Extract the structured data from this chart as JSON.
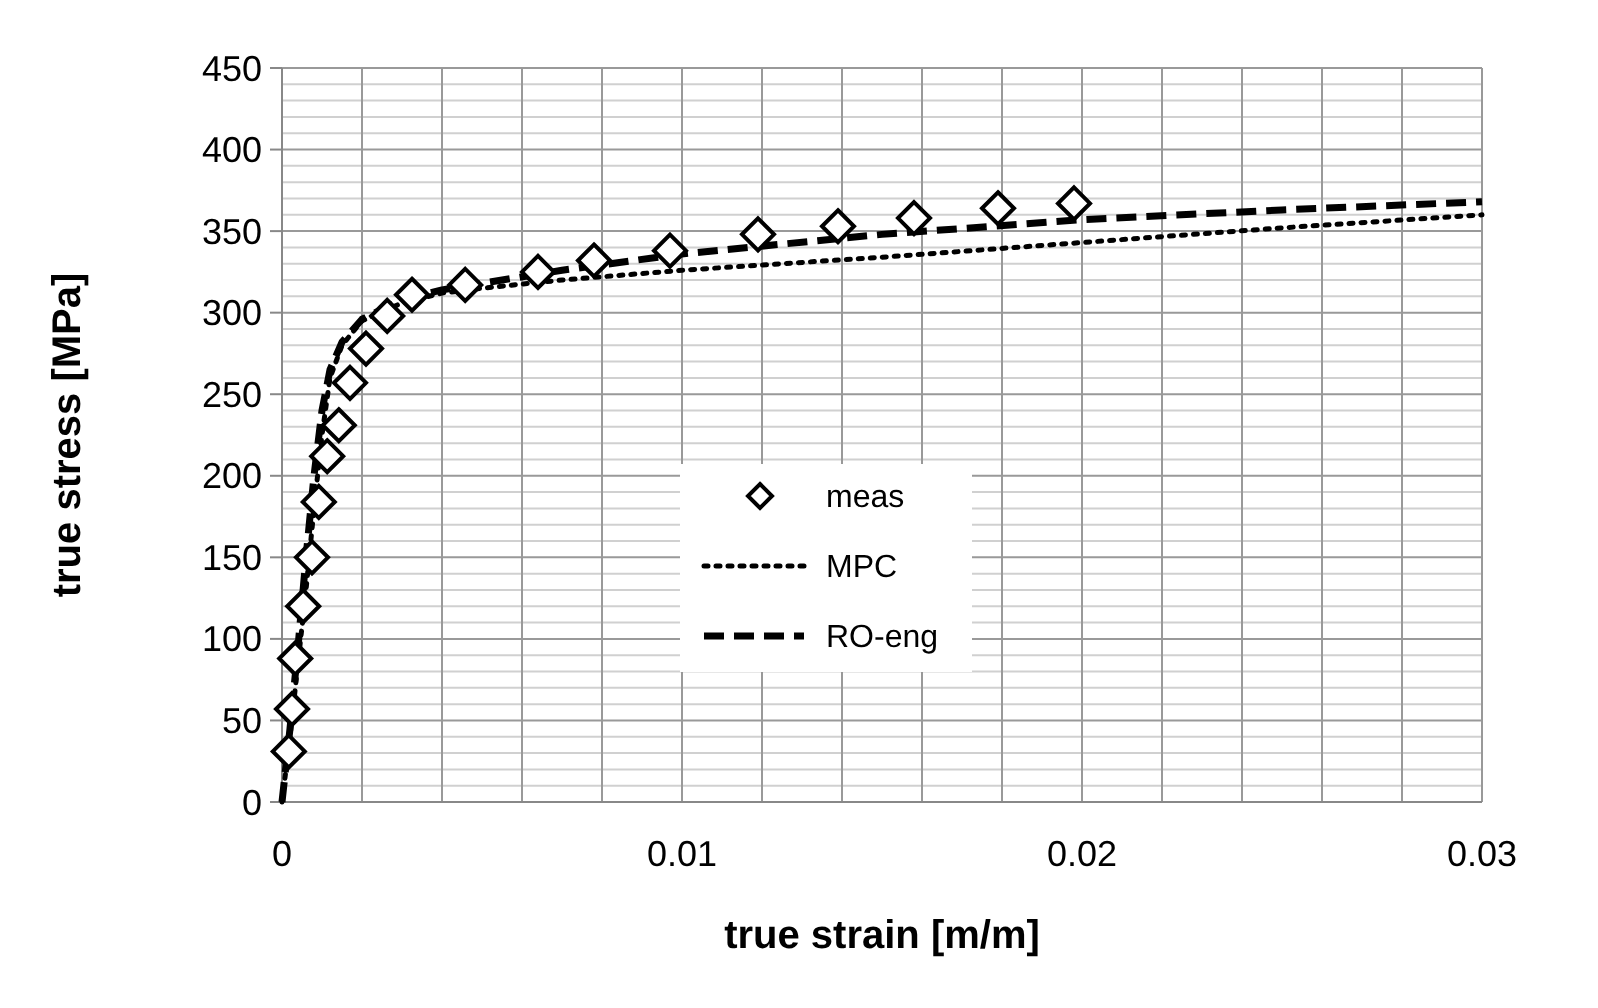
{
  "chart_data": {
    "type": "line",
    "xlabel": "true strain [m/m]",
    "ylabel": "true stress [MPa]",
    "xlim": [
      0,
      0.03
    ],
    "ylim": [
      0,
      450
    ],
    "xticks": [
      0,
      {
        "value": 0.002,
        "label": null
      },
      {
        "value": 0.004,
        "label": null
      },
      {
        "value": 0.006,
        "label": null
      },
      {
        "value": 0.008,
        "label": null
      },
      {
        "value": 0.01,
        "label": "0.01"
      },
      {
        "value": 0.012,
        "label": null
      },
      {
        "value": 0.014,
        "label": null
      },
      {
        "value": 0.016,
        "label": null
      },
      {
        "value": 0.018,
        "label": null
      },
      {
        "value": 0.02,
        "label": "0.02"
      },
      {
        "value": 0.022,
        "label": null
      },
      {
        "value": 0.024,
        "label": null
      },
      {
        "value": 0.026,
        "label": null
      },
      {
        "value": 0.028,
        "label": null
      },
      {
        "value": 0.03,
        "label": "0.03"
      }
    ],
    "yticks": [
      0,
      50,
      100,
      150,
      200,
      250,
      300,
      350,
      400,
      450
    ],
    "grid": true,
    "legend": "center",
    "series": [
      {
        "name": "meas",
        "type": "scatter",
        "marker": "diamond",
        "color": "#000000",
        "x": [
          0.00017,
          0.00025,
          0.00033,
          0.00053,
          0.00075,
          0.00092,
          0.00113,
          0.00142,
          0.0017,
          0.0021,
          0.00263,
          0.00325,
          0.00458,
          0.0064,
          0.0078,
          0.0097,
          0.0119,
          0.0139,
          0.0158,
          0.0179,
          0.0198
        ],
        "values": [
          31,
          57,
          88,
          120,
          150,
          184,
          212,
          231,
          257,
          278,
          298,
          311,
          317,
          325,
          332,
          338,
          348,
          353,
          358,
          364,
          367
        ]
      },
      {
        "name": "MPC",
        "type": "line",
        "line_style": "dotted",
        "color": "#000000",
        "x": [
          0,
          0.0002,
          0.0004,
          0.0006,
          0.0008,
          0.001,
          0.0012,
          0.0015,
          0.002,
          0.003,
          0.004,
          0.005,
          0.007,
          0.01,
          0.015,
          0.02,
          0.025,
          0.03
        ],
        "values": [
          0,
          40,
          85,
          130,
          180,
          225,
          260,
          280,
          295,
          306,
          312,
          315,
          320,
          326,
          334,
          343,
          352,
          360
        ]
      },
      {
        "name": "RO-eng",
        "type": "line",
        "line_style": "dashed",
        "color": "#000000",
        "x": [
          0,
          0.0002,
          0.0004,
          0.0006,
          0.0008,
          0.001,
          0.0012,
          0.0015,
          0.002,
          0.003,
          0.004,
          0.005,
          0.007,
          0.01,
          0.015,
          0.02,
          0.025,
          0.03
        ],
        "values": [
          0,
          45,
          95,
          150,
          200,
          240,
          265,
          282,
          296,
          308,
          314,
          318,
          326,
          336,
          348,
          357,
          363,
          368
        ]
      }
    ]
  }
}
